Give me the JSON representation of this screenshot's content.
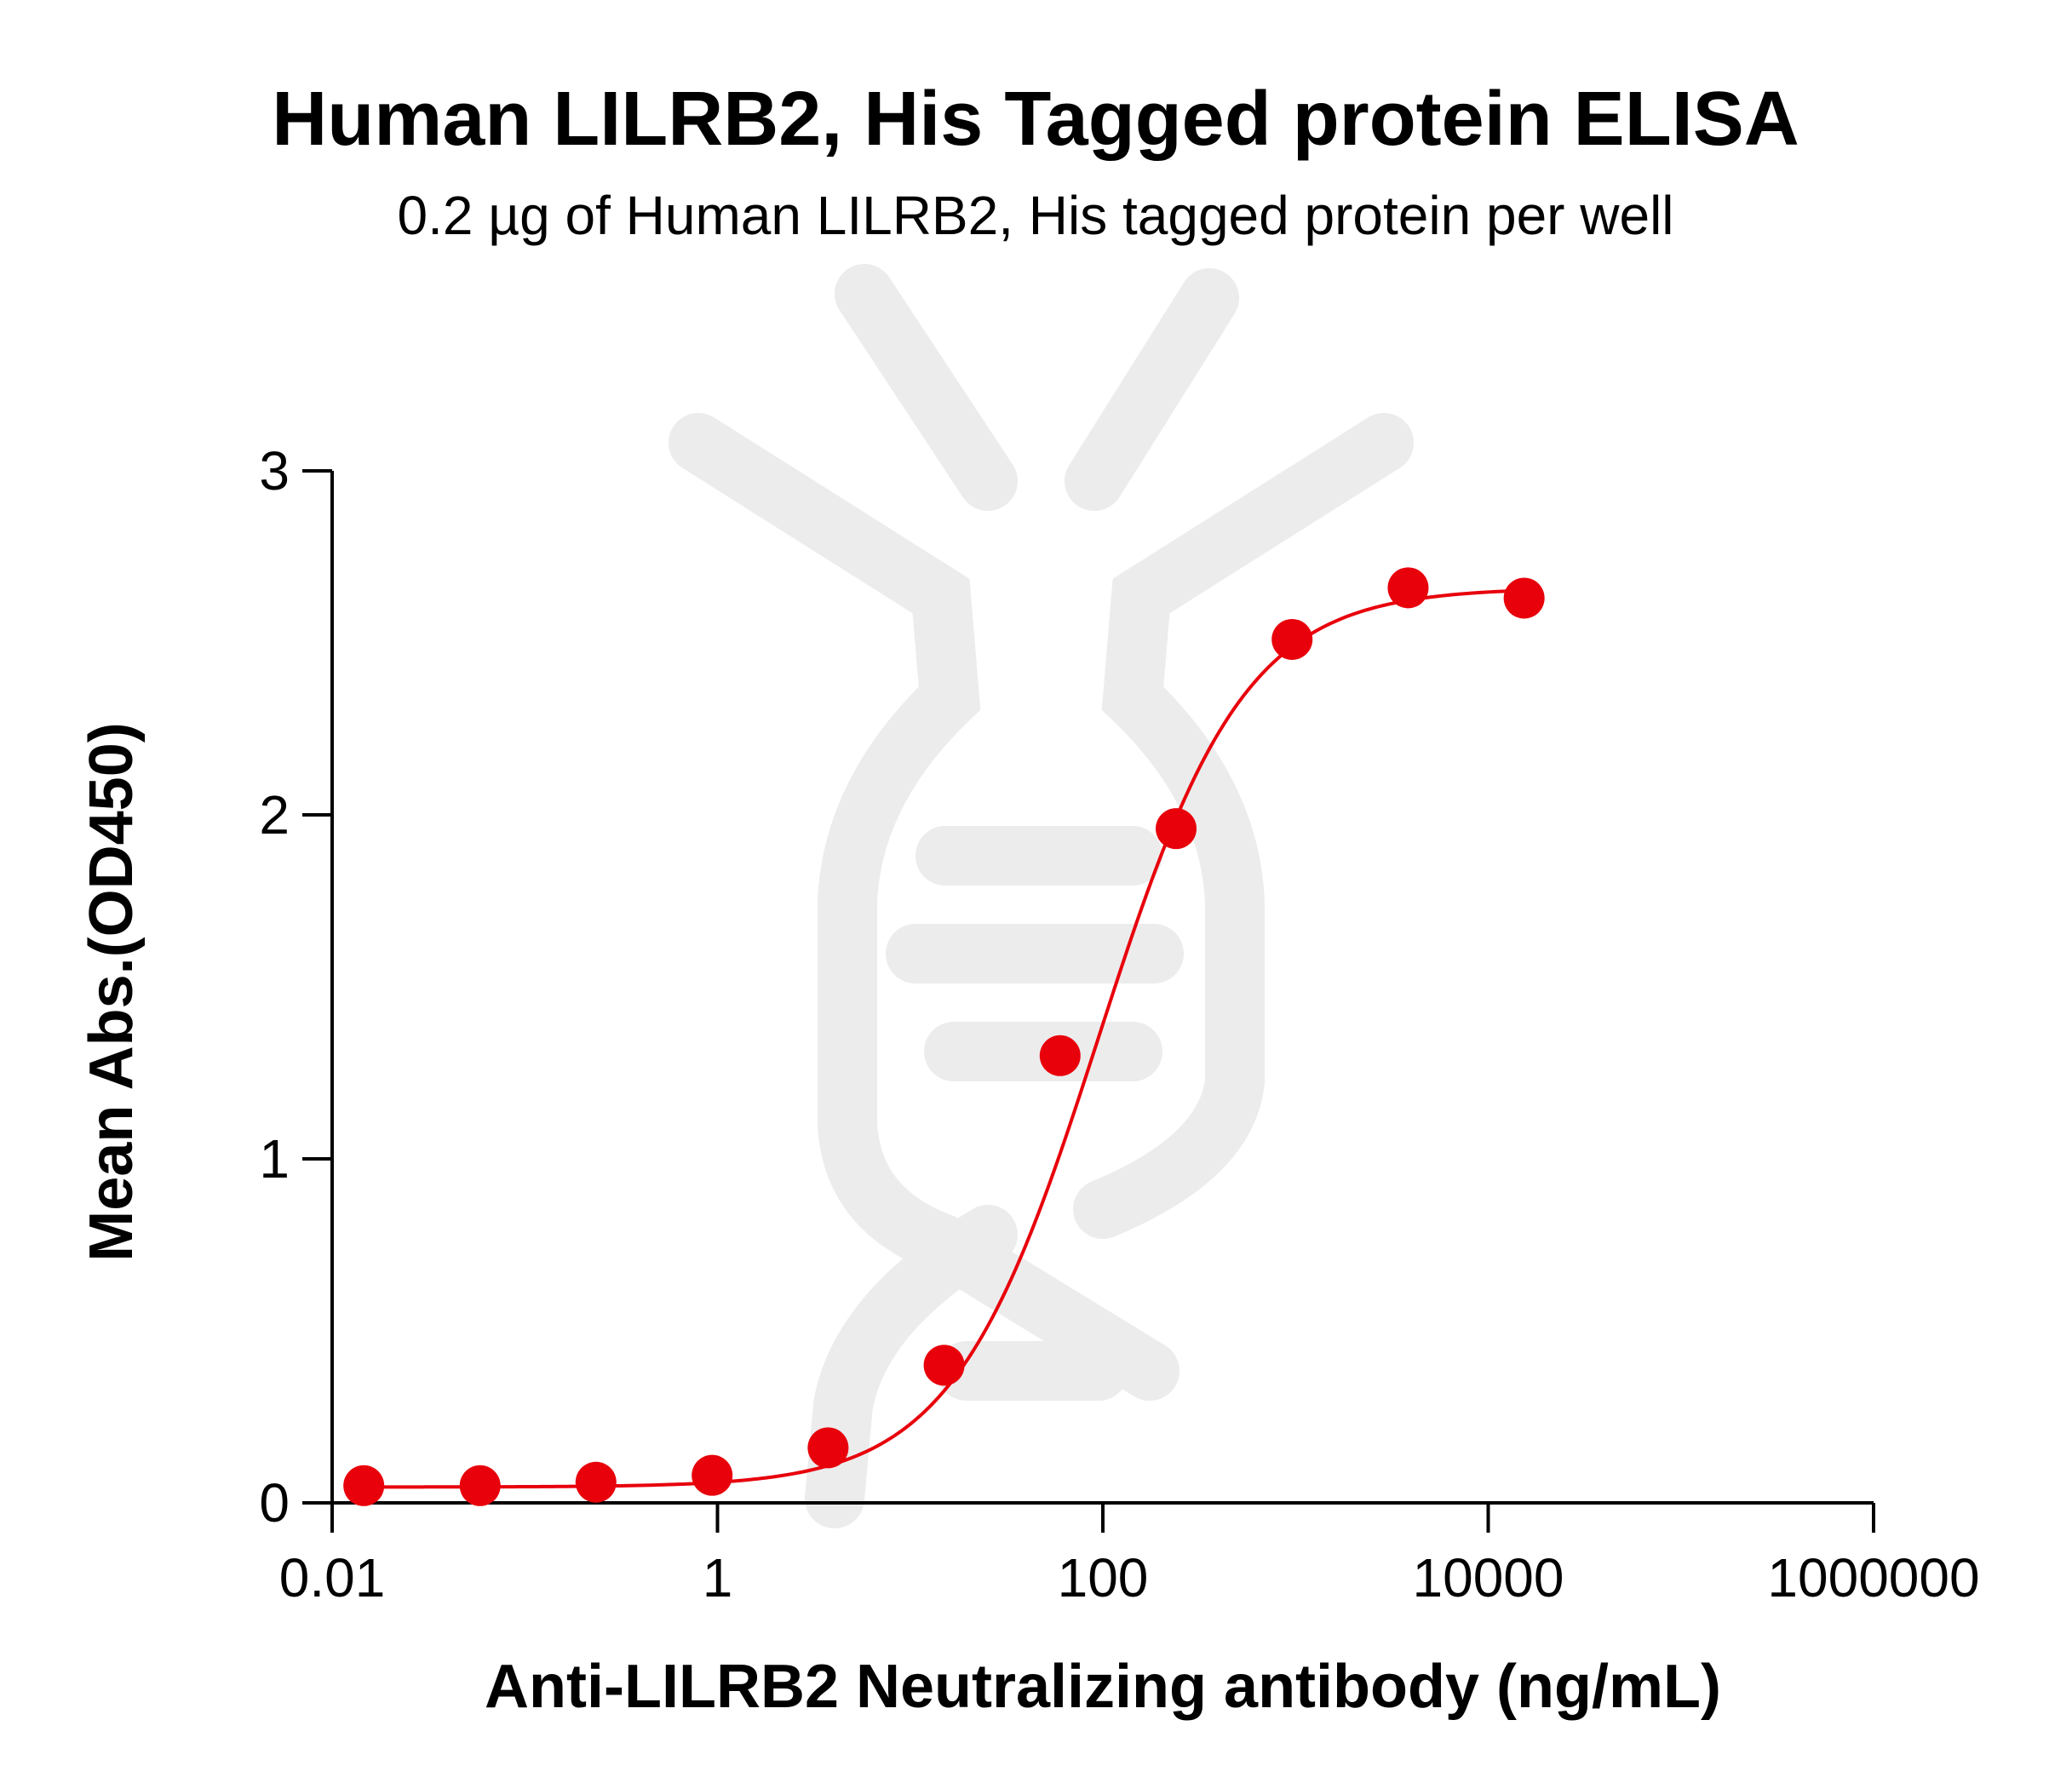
{
  "chart_data": {
    "type": "scatter",
    "title": "Human LILRB2, His Tagged protein ELISA",
    "subtitle": "0.2 µg of Human LILRB2, His tagged protein per well",
    "xlabel": "Anti-LILRB2 Neutralizing antibody (ng/mL)",
    "ylabel": "Mean Abs.(OD450)",
    "x_scale": "log",
    "xlim": [
      0.01,
      1000000
    ],
    "ylim": [
      0,
      3
    ],
    "x_ticks": [
      {
        "value": 0.01,
        "label": "0.01"
      },
      {
        "value": 1,
        "label": "1"
      },
      {
        "value": 100,
        "label": "100"
      },
      {
        "value": 10000,
        "label": "10000"
      },
      {
        "value": 1000000,
        "label": "1000000"
      }
    ],
    "y_ticks": [
      {
        "value": 0,
        "label": "0"
      },
      {
        "value": 1,
        "label": "1"
      },
      {
        "value": 2,
        "label": "2"
      },
      {
        "value": 3,
        "label": "3"
      }
    ],
    "grid": false,
    "legend": "none",
    "colors": {
      "series": "#e8000b",
      "axis": "#000000",
      "watermark": "#ececec"
    },
    "series": [
      {
        "x": [
          0.0146,
          0.0586,
          0.234,
          0.938,
          3.75,
          15,
          60,
          240,
          960,
          3840,
          15360
        ],
        "y": [
          0.05,
          0.05,
          0.06,
          0.08,
          0.16,
          0.4,
          1.3,
          1.96,
          2.51,
          2.66,
          2.63
        ]
      }
    ],
    "fit": {
      "model": "4PL",
      "bottom": 0.046,
      "top": 2.66,
      "ec50": 95,
      "hill": 1.15
    }
  }
}
